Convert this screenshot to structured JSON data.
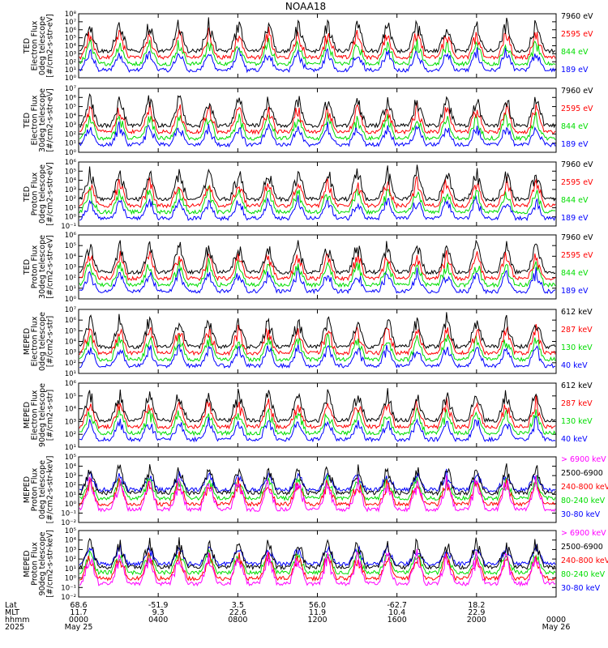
{
  "title": "NOAA18",
  "colors": {
    "blue": "#0000ff",
    "red": "#ff0000",
    "green": "#00dd00",
    "black": "#000000",
    "magenta": "#ff00ff"
  },
  "x_axis": {
    "row_labels": [
      "Lat",
      "MLT",
      "hhmm",
      "2025"
    ],
    "columns": [
      {
        "values": [
          "68.6",
          "11.7",
          "0000",
          "May 25"
        ]
      },
      {
        "values": [
          "-51.9",
          "9.3",
          "0400",
          ""
        ]
      },
      {
        "values": [
          "3.5",
          "22.6",
          "0800",
          ""
        ]
      },
      {
        "values": [
          "56.0",
          "11.9",
          "1200",
          ""
        ]
      },
      {
        "values": [
          "-62.7",
          "10.4",
          "1600",
          ""
        ]
      },
      {
        "values": [
          "18.2",
          "22.9",
          "2000",
          ""
        ]
      },
      {
        "values": [
          "",
          "",
          "0000",
          "May 26"
        ]
      }
    ]
  },
  "chart_data": [
    {
      "type": "line",
      "ylabel": [
        "TED",
        "Electron Flux",
        "0deg telescope",
        "[#/cm2-s-str-eV]"
      ],
      "y_log_range": [
        0,
        8
      ],
      "series": [
        {
          "name": "7960 eV",
          "color": "black"
        },
        {
          "name": "2595 eV",
          "color": "red"
        },
        {
          "name": "844 eV",
          "color": "green"
        },
        {
          "name": "189 eV",
          "color": "blue"
        }
      ]
    },
    {
      "type": "line",
      "ylabel": [
        "TED",
        "Electron Flux",
        "30deg telescope",
        "[#/cm2-s-str-eV]"
      ],
      "y_log_range": [
        0,
        7
      ],
      "series": [
        {
          "name": "7960 eV",
          "color": "black"
        },
        {
          "name": "2595 eV",
          "color": "red"
        },
        {
          "name": "844 eV",
          "color": "green"
        },
        {
          "name": "189 eV",
          "color": "blue"
        }
      ]
    },
    {
      "type": "line",
      "ylabel": [
        "TED",
        "Proton Flux",
        "0deg telescope",
        "[#/cm2-s-str-eV]"
      ],
      "y_log_range": [
        -1,
        6
      ],
      "series": [
        {
          "name": "7960 eV",
          "color": "black"
        },
        {
          "name": "2595 eV",
          "color": "red"
        },
        {
          "name": "844 eV",
          "color": "green"
        },
        {
          "name": "189 eV",
          "color": "blue"
        }
      ]
    },
    {
      "type": "line",
      "ylabel": [
        "TED",
        "Proton Flux",
        "30deg telescope",
        "[#/cm2-s-str-eV]"
      ],
      "y_log_range": [
        0,
        6
      ],
      "series": [
        {
          "name": "7960 eV",
          "color": "black"
        },
        {
          "name": "2595 eV",
          "color": "red"
        },
        {
          "name": "844 eV",
          "color": "green"
        },
        {
          "name": "189 eV",
          "color": "blue"
        }
      ]
    },
    {
      "type": "line",
      "ylabel": [
        "MEPED",
        "Electron Flux",
        "0deg telescope",
        "[#/cm2-s-str]"
      ],
      "y_log_range": [
        1,
        7
      ],
      "series": [
        {
          "name": "612 keV",
          "color": "black"
        },
        {
          "name": "287 keV",
          "color": "red"
        },
        {
          "name": "130 keV",
          "color": "green"
        },
        {
          "name": "40 keV",
          "color": "blue"
        }
      ]
    },
    {
      "type": "line",
      "ylabel": [
        "MEPED",
        "Electron Flux",
        "90deg telescope",
        "[#/cm2-s-str]"
      ],
      "y_log_range": [
        1,
        6
      ],
      "series": [
        {
          "name": "612 keV",
          "color": "black"
        },
        {
          "name": "287 keV",
          "color": "red"
        },
        {
          "name": "130 keV",
          "color": "green"
        },
        {
          "name": "40 keV",
          "color": "blue"
        }
      ]
    },
    {
      "type": "line",
      "ylabel": [
        "MEPED",
        "Proton Flux",
        "0deg telescope",
        "[#/cm2-s-str-keV]"
      ],
      "y_log_range": [
        -2,
        5
      ],
      "series": [
        {
          "name": "> 6900 keV",
          "color": "magenta"
        },
        {
          "name": "2500-6900",
          "color": "black"
        },
        {
          "name": "240-800 keV",
          "color": "red"
        },
        {
          "name": "80-240 keV",
          "color": "green"
        },
        {
          "name": "30-80 keV",
          "color": "blue"
        }
      ]
    },
    {
      "type": "line",
      "ylabel": [
        "MEPED",
        "Proton Flux",
        "90deg telescope",
        "[#/cm2-s-str-keV]"
      ],
      "y_log_range": [
        -2,
        5
      ],
      "series": [
        {
          "name": "> 6900 keV",
          "color": "magenta"
        },
        {
          "name": "2500-6900",
          "color": "black"
        },
        {
          "name": "240-800 keV",
          "color": "red"
        },
        {
          "name": "80-240 keV",
          "color": "green"
        },
        {
          "name": "30-80 keV",
          "color": "blue"
        }
      ]
    }
  ]
}
